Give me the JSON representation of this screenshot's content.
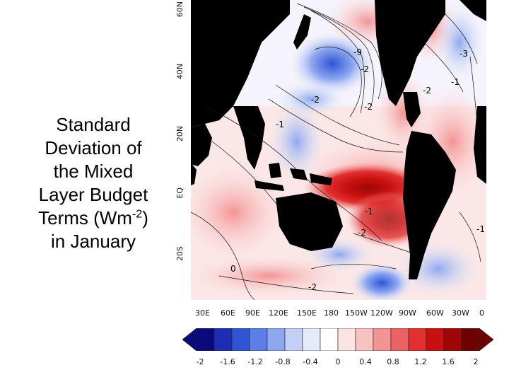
{
  "title": {
    "line1": "Standard",
    "line2": "Deviation of",
    "line3": "the Mixed",
    "line4": "Layer Budget",
    "line5_pre": "Terms (Wm",
    "line5_sup": "-2",
    "line5_post": ")",
    "line6": "in January"
  },
  "map": {
    "y_ticks": [
      "60N",
      "40N",
      "20N",
      "EQ",
      "20S"
    ],
    "x_ticks": [
      "30E",
      "60E",
      "90E",
      "120E",
      "150E",
      "180",
      "150W",
      "120W",
      "90W",
      "60W",
      "30W",
      "0"
    ],
    "contour_labels": [
      "-9",
      "-2",
      "-2",
      "-3",
      "-1",
      "-2",
      "-1",
      "-1",
      "-2",
      "-1",
      "-2",
      "0",
      "-2",
      "-1"
    ]
  },
  "colorbar": {
    "ticks": [
      "-2",
      "-1.6",
      "-1.2",
      "-0.8",
      "-0.4",
      "0",
      "0.4",
      "0.8",
      "1.2",
      "1.6",
      "2"
    ],
    "colors": [
      "#0a0a7a",
      "#1c2fb4",
      "#2f55d6",
      "#5b7fe6",
      "#8ea8f0",
      "#c2d0f6",
      "#e6ebfa",
      "#ffffff",
      "#fde3e3",
      "#f8c2c2",
      "#f39494",
      "#ec6262",
      "#e23030",
      "#c81010",
      "#9e0606",
      "#6e0202"
    ]
  }
}
